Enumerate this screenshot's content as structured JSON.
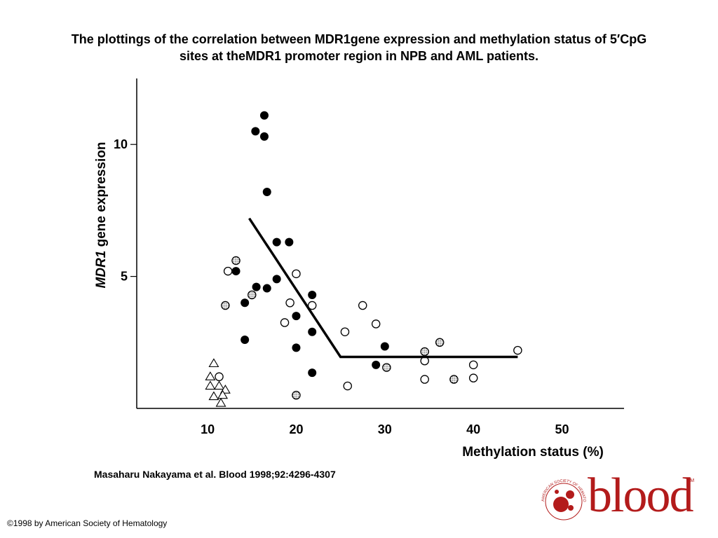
{
  "slide": {
    "title_line1": "The plottings of the correlation between MDR1gene expression and methylation status of 5′CpG",
    "title_line2": "sites at theMDR1 promoter region in NPB and AML patients.",
    "citation": "Masaharu Nakayama et al. Blood 1998;92:4296-4307",
    "copyright": "©1998 by American Society of Hematology",
    "logo": {
      "word": "blood",
      "trademark": "TM",
      "society_text": "AMERICAN SOCIETY OF HEMATOLOGY",
      "color": "#b31b1b"
    }
  },
  "chart_data": {
    "type": "scatter",
    "title": "",
    "xlabel": "Methylation status (%)",
    "ylabel_italic": "MDR1",
    "ylabel_rest": " gene expression",
    "xlim": [
      2,
      57
    ],
    "ylim": [
      0,
      12.5
    ],
    "xticks": [
      10,
      20,
      30,
      40,
      50
    ],
    "yticks": [
      5,
      10
    ],
    "grid": false,
    "series": [
      {
        "name": "filled-circles",
        "marker": "filled-circle",
        "points": [
          [
            16.4,
            11.1
          ],
          [
            15.4,
            10.5
          ],
          [
            16.4,
            10.3
          ],
          [
            16.7,
            8.2
          ],
          [
            17.8,
            6.3
          ],
          [
            19.2,
            6.3
          ],
          [
            13.2,
            5.2
          ],
          [
            15.5,
            4.6
          ],
          [
            16.7,
            4.55
          ],
          [
            17.8,
            4.9
          ],
          [
            14.2,
            4.0
          ],
          [
            21.8,
            4.3
          ],
          [
            20.0,
            3.5
          ],
          [
            21.8,
            2.9
          ],
          [
            14.2,
            2.6
          ],
          [
            20.0,
            2.3
          ],
          [
            21.8,
            1.35
          ],
          [
            30.0,
            2.35
          ],
          [
            29.0,
            1.65
          ]
        ]
      },
      {
        "name": "open-circles",
        "marker": "open-circle",
        "points": [
          [
            12.3,
            5.2
          ],
          [
            20.0,
            5.1
          ],
          [
            19.3,
            4.0
          ],
          [
            21.8,
            3.9
          ],
          [
            18.7,
            3.25
          ],
          [
            25.5,
            2.9
          ],
          [
            27.5,
            3.9
          ],
          [
            29.0,
            3.2
          ],
          [
            34.5,
            1.8
          ],
          [
            34.5,
            1.1
          ],
          [
            40.0,
            1.65
          ],
          [
            40.0,
            1.15
          ],
          [
            45.0,
            2.2
          ],
          [
            25.8,
            0.85
          ],
          [
            11.3,
            1.2
          ]
        ]
      },
      {
        "name": "hatched-circles",
        "marker": "hatched-circle",
        "points": [
          [
            13.2,
            5.6
          ],
          [
            15.0,
            4.3
          ],
          [
            12.0,
            3.9
          ],
          [
            30.2,
            1.55
          ],
          [
            34.5,
            2.15
          ],
          [
            36.2,
            2.5
          ],
          [
            37.8,
            1.1
          ],
          [
            20.0,
            0.5
          ]
        ]
      },
      {
        "name": "open-triangles",
        "marker": "open-triangle",
        "points": [
          [
            10.7,
            1.7
          ],
          [
            10.3,
            1.2
          ],
          [
            10.3,
            0.85
          ],
          [
            11.3,
            0.85
          ],
          [
            12.0,
            0.7
          ],
          [
            10.7,
            0.45
          ],
          [
            11.7,
            0.5
          ],
          [
            11.5,
            0.2
          ]
        ]
      }
    ],
    "trend_line": {
      "points": [
        [
          14.7,
          7.2
        ],
        [
          25.0,
          1.95
        ],
        [
          45.0,
          1.95
        ]
      ]
    }
  }
}
